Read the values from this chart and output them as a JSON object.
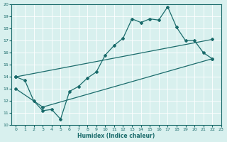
{
  "xlabel": "Humidex (Indice chaleur)",
  "xlim": [
    -0.5,
    23
  ],
  "ylim": [
    10,
    20
  ],
  "xticks": [
    0,
    1,
    2,
    3,
    4,
    5,
    6,
    7,
    8,
    9,
    10,
    11,
    12,
    13,
    14,
    15,
    16,
    17,
    18,
    19,
    20,
    21,
    22,
    23
  ],
  "yticks": [
    10,
    11,
    12,
    13,
    14,
    15,
    16,
    17,
    18,
    19,
    20
  ],
  "bg_color": "#d8f0ee",
  "line_color": "#1a6b6b",
  "line1_x": [
    0,
    1,
    2,
    3,
    4,
    5,
    6,
    7,
    8,
    9,
    10,
    11,
    12,
    13,
    14,
    15,
    16,
    17,
    18,
    19,
    20,
    21,
    22
  ],
  "line1_y": [
    14,
    13.7,
    12,
    11.2,
    11.3,
    10.5,
    12.8,
    13.2,
    13.9,
    14.4,
    15.8,
    16.6,
    17.2,
    18.8,
    18.5,
    18.8,
    18.7,
    19.8,
    18.1,
    17.0,
    17.0,
    16.0,
    15.5
  ],
  "line2_x": [
    0,
    22
  ],
  "line2_y": [
    14.0,
    17.1
  ],
  "line3_x": [
    0,
    3,
    22
  ],
  "line3_y": [
    13.0,
    11.5,
    15.5
  ]
}
